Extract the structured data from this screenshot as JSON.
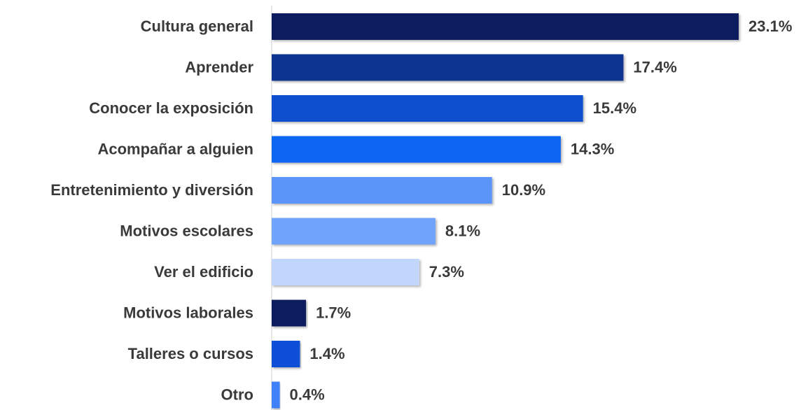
{
  "chart_data": {
    "type": "bar",
    "orientation": "horizontal",
    "categories": [
      "Cultura general",
      "Aprender",
      "Conocer la exposición",
      "Acompañar a alguien",
      "Entretenimiento y diversión",
      "Motivos escolares",
      "Ver el edificio",
      "Motivos laborales",
      "Talleres o cursos",
      "Otro"
    ],
    "values": [
      23.1,
      17.4,
      15.4,
      14.3,
      10.9,
      8.1,
      7.3,
      1.7,
      1.4,
      0.4
    ],
    "value_labels": [
      "23.1%",
      "17.4%",
      "15.4%",
      "14.3%",
      "10.9%",
      "8.1%",
      "7.3%",
      "1.7%",
      "1.4%",
      "0.4%"
    ],
    "colors": [
      "#0b1f5e",
      "#0b3490",
      "#0a4fcf",
      "#0b66f2",
      "#5b95fa",
      "#70a4fb",
      "#c2d6fb",
      "#0b1f5e",
      "#0a4fd6",
      "#3f80f8"
    ]
  }
}
